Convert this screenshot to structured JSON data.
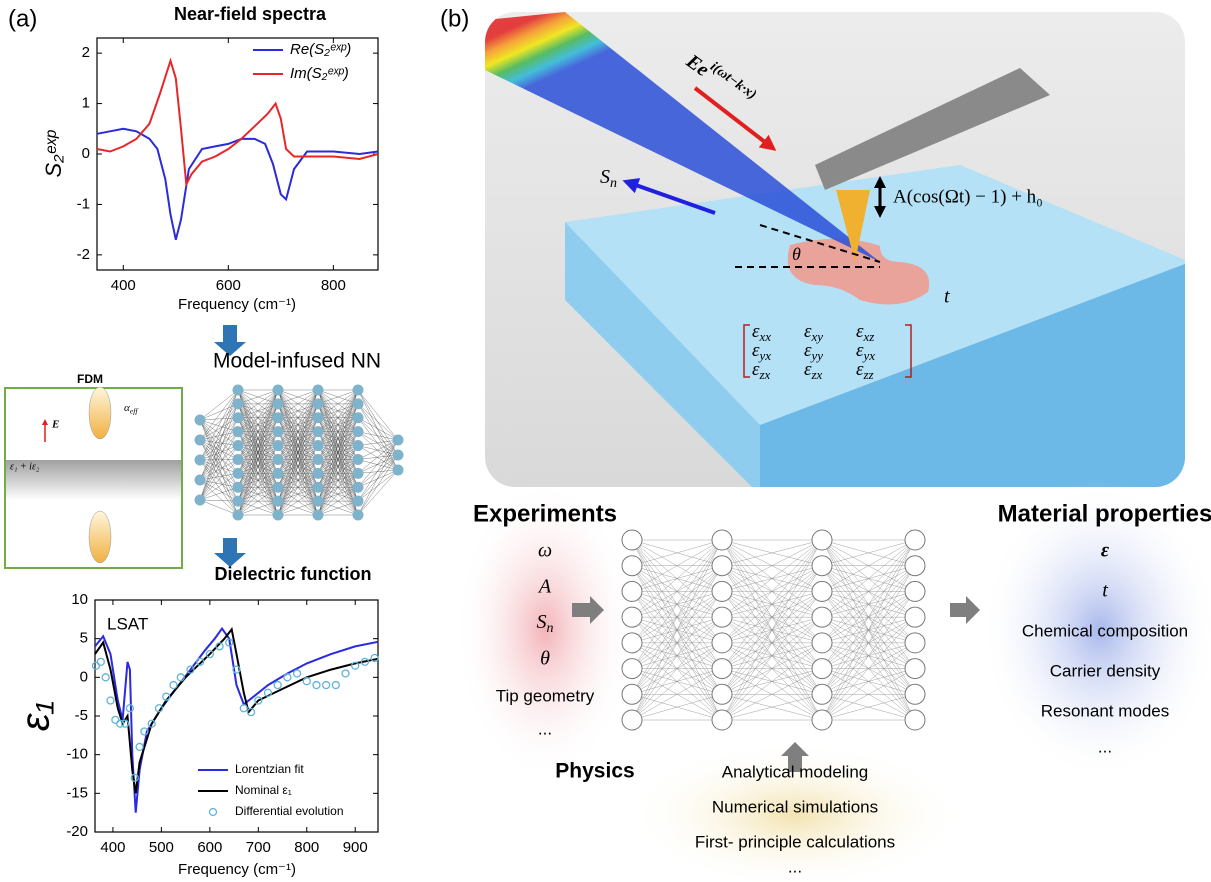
{
  "panel_labels": [
    "(a)",
    "(b)"
  ],
  "chart_data": [
    {
      "type": "line",
      "title": "Near-field spectra",
      "title_color": "#c0262d",
      "xlabel": "Frequency (cm⁻¹)",
      "ylabel": "S₂ᵉˣᵖ",
      "xlim": [
        350,
        885
      ],
      "xticks": [
        400,
        600,
        800
      ],
      "ylim": [
        -2.3,
        2.3
      ],
      "yticks": [
        -2,
        -1,
        0,
        1,
        2
      ],
      "legend": "upper right",
      "series": [
        {
          "name": "Re(S₂ᵉˣᵖ)",
          "color": "#2b2bd8",
          "style": "line",
          "x": [
            350,
            375,
            400,
            425,
            450,
            465,
            480,
            490,
            500,
            510,
            525,
            550,
            575,
            600,
            625,
            650,
            670,
            685,
            700,
            710,
            725,
            750,
            800,
            850,
            885
          ],
          "values": [
            0.4,
            0.45,
            0.5,
            0.45,
            0.3,
            0.1,
            -0.5,
            -1.2,
            -1.7,
            -1.3,
            -0.3,
            0.1,
            0.15,
            0.2,
            0.3,
            0.3,
            0.2,
            -0.2,
            -0.8,
            -0.9,
            -0.3,
            0.05,
            0.05,
            0.0,
            0.05
          ]
        },
        {
          "name": "Im(S₂ᵉˣᵖ)",
          "color": "#e8262a",
          "style": "line",
          "x": [
            350,
            375,
            400,
            425,
            450,
            470,
            490,
            500,
            510,
            520,
            530,
            550,
            575,
            600,
            625,
            650,
            675,
            690,
            700,
            710,
            725,
            750,
            800,
            850,
            885
          ],
          "values": [
            0.1,
            0.05,
            0.15,
            0.3,
            0.6,
            1.2,
            1.85,
            1.5,
            0.5,
            -0.6,
            -0.4,
            -0.15,
            -0.05,
            0.1,
            0.3,
            0.55,
            0.8,
            1.0,
            0.7,
            0.1,
            -0.05,
            -0.05,
            -0.05,
            -0.1,
            0.0
          ]
        }
      ]
    },
    {
      "type": "line",
      "title": "Dielectric function",
      "title_color": "#2e75b6",
      "xlabel": "Frequency (cm⁻¹)",
      "ylabel": "ε₁",
      "annotation": "LSAT",
      "xlim": [
        363,
        947
      ],
      "xticks": [
        400,
        500,
        600,
        700,
        800,
        900
      ],
      "ylim": [
        -20,
        10
      ],
      "yticks": [
        -20,
        -15,
        -10,
        -5,
        0,
        5,
        10
      ],
      "legend": "lower right",
      "series": [
        {
          "name": "Lorentzian fit",
          "color": "#2a2ae0",
          "style": "line",
          "x": [
            363,
            380,
            395,
            410,
            420,
            430,
            435,
            440,
            447,
            455,
            470,
            500,
            530,
            560,
            590,
            610,
            625,
            640,
            655,
            670,
            690,
            720,
            760,
            800,
            850,
            900,
            947
          ],
          "values": [
            4,
            5.3,
            3,
            -3,
            -5.5,
            2,
            1,
            -10,
            -17.5,
            -12,
            -7,
            -4,
            -1.5,
            1,
            3.5,
            5,
            6.3,
            5,
            -1,
            -3.5,
            -2.5,
            -1,
            0.5,
            1.8,
            3,
            4,
            4.6
          ]
        },
        {
          "name": "Nominal ε₁",
          "color": "#000000",
          "style": "line",
          "x": [
            363,
            380,
            395,
            410,
            420,
            430,
            440,
            447,
            455,
            480,
            510,
            550,
            600,
            630,
            645,
            655,
            670,
            680,
            700,
            750,
            800,
            850,
            900,
            947
          ],
          "values": [
            3,
            4.5,
            1,
            -4,
            -6,
            -5,
            -12,
            -15,
            -11,
            -6,
            -3,
            0,
            3,
            5,
            6.2,
            3,
            -2,
            -4.5,
            -3,
            -1.5,
            0,
            1,
            1.8,
            2.4
          ]
        },
        {
          "name": "Differential evolution",
          "color": "#5fb4d8",
          "style": "markers",
          "x": [
            365,
            375,
            385,
            395,
            405,
            415,
            425,
            435,
            445,
            455,
            465,
            480,
            495,
            510,
            525,
            540,
            560,
            580,
            600,
            620,
            640,
            655,
            670,
            685,
            700,
            720,
            740,
            760,
            780,
            800,
            820,
            840,
            860,
            880,
            900,
            920,
            940
          ],
          "values": [
            1.5,
            2,
            0,
            -3,
            -5.5,
            -6,
            -6,
            -4,
            -13,
            -9,
            -7,
            -6,
            -4,
            -2.5,
            -1,
            0,
            1,
            2,
            3,
            4,
            4.5,
            1,
            -4,
            -4.5,
            -3,
            -2,
            -1,
            0,
            0.5,
            -0.5,
            -1,
            -1,
            -1,
            0.5,
            1.5,
            2,
            2.5
          ]
        }
      ]
    }
  ],
  "model_title": "Model-infused NN",
  "fdm": {
    "label": "FDM",
    "field": "E",
    "polarizability": {
      "symbol": "α",
      "sub": "eff"
    },
    "substrate": "ε₁ + iε₂"
  },
  "setup": {
    "incident": {
      "symbol": "E",
      "rest": "e",
      "sup": "i(ωt−k·x)"
    },
    "scattered": {
      "symbol": "S",
      "sub": "n"
    },
    "tip_motion": "A(cos(Ωt) − 1) + h₀",
    "angle": "θ",
    "thickness": "t",
    "tensor": {
      "symbol": "ε",
      "subscripts": [
        [
          "xx",
          "xy",
          "xz"
        ],
        [
          "yx",
          "yy",
          "yx"
        ],
        [
          "zx",
          "zx",
          "zz"
        ]
      ]
    }
  },
  "experiments": {
    "title": "Experiments",
    "items": [
      "ω",
      "A",
      {
        "symbol": "S",
        "sub": "n"
      },
      "θ",
      "Tip geometry",
      "..."
    ]
  },
  "properties": {
    "title": "Material properties",
    "items": [
      "ε",
      "t",
      "Chemical composition",
      "Carrier density",
      "Resonant modes",
      "..."
    ]
  },
  "physics": {
    "title": "Physics",
    "items": [
      "Analytical modeling",
      "Numerical simulations",
      "First- principle calculations",
      "..."
    ]
  }
}
